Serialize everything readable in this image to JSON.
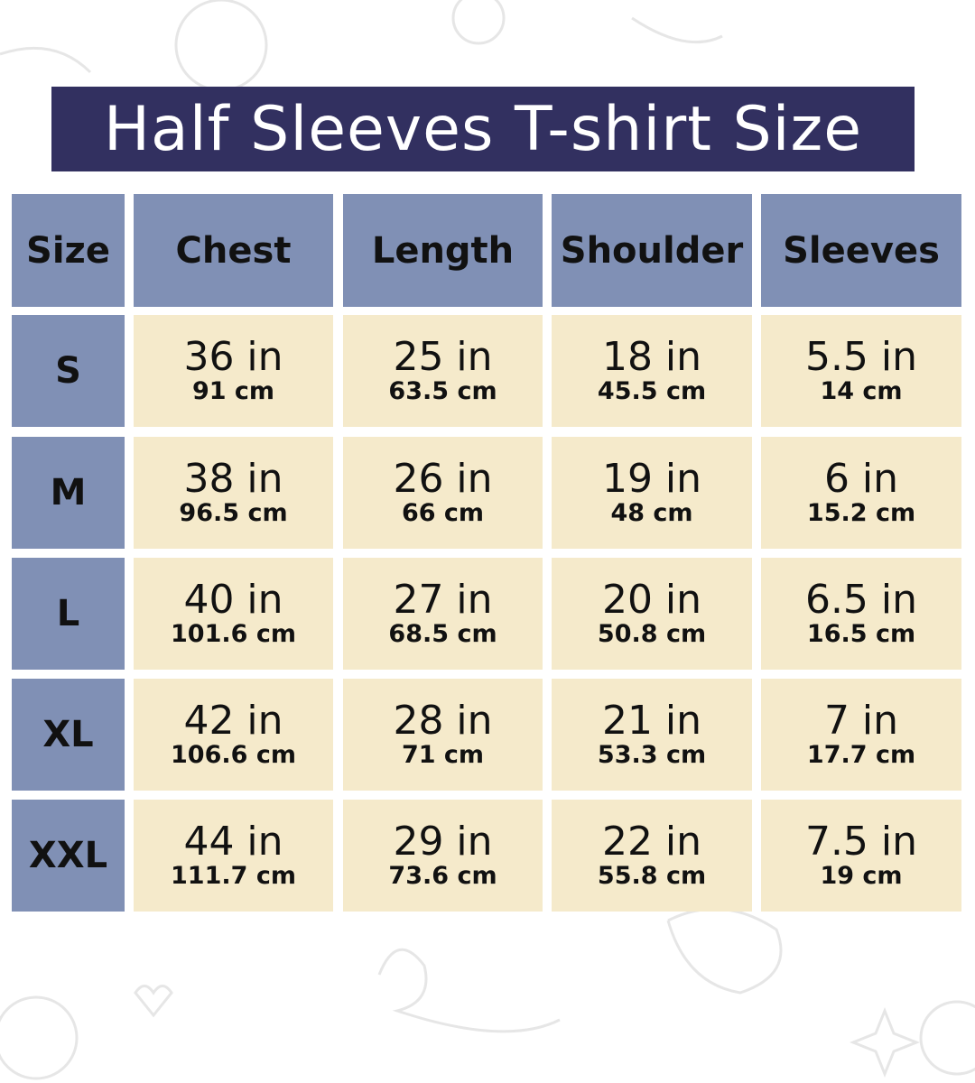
{
  "title": "Half Sleeves T-shirt Size",
  "colors": {
    "title_bg": "#323060",
    "header_bg": "#8090b5",
    "cell_bg": "#f5eacb"
  },
  "headers": [
    "Size",
    "Chest",
    "Length",
    "Shoulder",
    "Sleeves"
  ],
  "rows": [
    {
      "size": "S",
      "cells": [
        {
          "in": "36 in",
          "cm": "91 cm"
        },
        {
          "in": "25 in",
          "cm": "63.5 cm"
        },
        {
          "in": "18 in",
          "cm": "45.5 cm"
        },
        {
          "in": "5.5 in",
          "cm": "14 cm"
        }
      ]
    },
    {
      "size": "M",
      "cells": [
        {
          "in": "38 in",
          "cm": "96.5 cm"
        },
        {
          "in": "26 in",
          "cm": "66 cm"
        },
        {
          "in": "19 in",
          "cm": "48 cm"
        },
        {
          "in": "6 in",
          "cm": "15.2 cm"
        }
      ]
    },
    {
      "size": "L",
      "cells": [
        {
          "in": "40 in",
          "cm": "101.6 cm"
        },
        {
          "in": "27 in",
          "cm": "68.5 cm"
        },
        {
          "in": "20 in",
          "cm": "50.8 cm"
        },
        {
          "in": "6.5 in",
          "cm": "16.5 cm"
        }
      ]
    },
    {
      "size": "XL",
      "cells": [
        {
          "in": "42 in",
          "cm": "106.6 cm"
        },
        {
          "in": "28 in",
          "cm": "71 cm"
        },
        {
          "in": "21 in",
          "cm": "53.3 cm"
        },
        {
          "in": "7 in",
          "cm": "17.7 cm"
        }
      ]
    },
    {
      "size": "XXL",
      "cells": [
        {
          "in": "44 in",
          "cm": "111.7 cm"
        },
        {
          "in": "29 in",
          "cm": "73.6 cm"
        },
        {
          "in": "22 in",
          "cm": "55.8 cm"
        },
        {
          "in": "7.5 in",
          "cm": "19 cm"
        }
      ]
    }
  ]
}
